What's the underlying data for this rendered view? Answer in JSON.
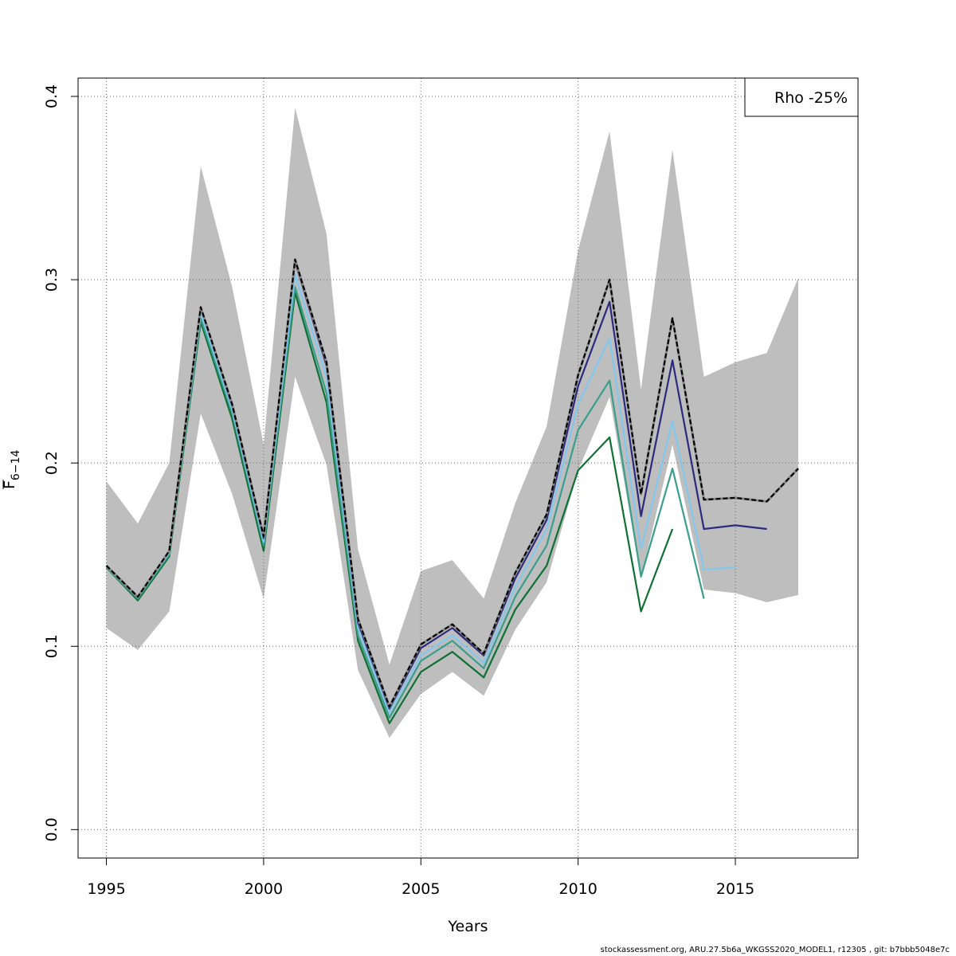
{
  "chart_data": {
    "type": "line",
    "xlabel": "Years",
    "ylabel": {
      "main": "F",
      "sub": "6−14"
    },
    "xlim": [
      1994.1,
      2018.9
    ],
    "ylim": [
      -0.0155,
      0.41
    ],
    "x_ticks": [
      1995,
      2000,
      2005,
      2010,
      2015
    ],
    "y_ticks": [
      0.0,
      0.1,
      0.2,
      0.3,
      0.4
    ],
    "x_tick_labels": [
      "1995",
      "2000",
      "2005",
      "2010",
      "2015"
    ],
    "y_tick_labels": [
      "0.0",
      "0.1",
      "0.2",
      "0.3",
      "0.4"
    ],
    "grid": true,
    "legend": {
      "position": "top-right",
      "entries": [
        "Rho -25%"
      ]
    },
    "confidence_band": {
      "x": [
        1995,
        1996,
        1997,
        1998,
        1999,
        2000,
        2001,
        2002,
        2003,
        2004,
        2005,
        2006,
        2007,
        2008,
        2009,
        2010,
        2011,
        2012,
        2013,
        2014,
        2015,
        2016,
        2017
      ],
      "upper": [
        0.19,
        0.167,
        0.2,
        0.362,
        0.296,
        0.21,
        0.394,
        0.325,
        0.153,
        0.09,
        0.141,
        0.147,
        0.126,
        0.178,
        0.22,
        0.316,
        0.381,
        0.24,
        0.371,
        0.247,
        0.255,
        0.26,
        0.301
      ],
      "lower": [
        0.11,
        0.098,
        0.119,
        0.227,
        0.183,
        0.126,
        0.247,
        0.199,
        0.087,
        0.05,
        0.074,
        0.086,
        0.073,
        0.109,
        0.135,
        0.196,
        0.236,
        0.137,
        0.21,
        0.131,
        0.129,
        0.124,
        0.128
      ]
    },
    "series": [
      {
        "x": [
          1995,
          1996,
          1997,
          1998,
          1999,
          2000,
          2001,
          2002,
          2003,
          2004,
          2005,
          2006,
          2007,
          2008,
          2009,
          2010,
          2011,
          2012,
          2013,
          2014,
          2015,
          2016,
          2017
        ],
        "values": [
          0.144,
          0.127,
          0.152,
          0.285,
          0.232,
          0.16,
          0.311,
          0.255,
          0.115,
          0.067,
          0.101,
          0.112,
          0.096,
          0.14,
          0.172,
          0.248,
          0.3,
          0.183,
          0.279,
          0.18,
          0.181,
          0.179,
          0.197
        ],
        "color": "#000000",
        "dashed": true
      },
      {
        "x": [
          1995,
          1996,
          1997,
          1998,
          1999,
          2000,
          2001,
          2002,
          2003,
          2004,
          2005,
          2006,
          2007,
          2008,
          2009,
          2010,
          2011,
          2012,
          2013,
          2014,
          2015,
          2016
        ],
        "values": [
          0.144,
          0.127,
          0.152,
          0.285,
          0.231,
          0.159,
          0.31,
          0.253,
          0.113,
          0.066,
          0.099,
          0.11,
          0.095,
          0.137,
          0.169,
          0.242,
          0.288,
          0.171,
          0.256,
          0.164,
          0.166,
          0.164
        ],
        "color": "#2b2a7f"
      },
      {
        "x": [
          1995,
          1996,
          1997,
          1998,
          1999,
          2000,
          2001,
          2002,
          2003,
          2004,
          2005,
          2006,
          2007,
          2008,
          2009,
          2010,
          2011,
          2012,
          2013,
          2014,
          2015
        ],
        "values": [
          0.144,
          0.127,
          0.151,
          0.282,
          0.229,
          0.157,
          0.303,
          0.247,
          0.11,
          0.064,
          0.095,
          0.106,
          0.091,
          0.132,
          0.164,
          0.232,
          0.268,
          0.153,
          0.223,
          0.142,
          0.143
        ],
        "color": "#82c8ee"
      },
      {
        "x": [
          1995,
          1996,
          1997,
          1998,
          1999,
          2000,
          2001,
          2002,
          2003,
          2004,
          2005,
          2006,
          2007,
          2008,
          2009,
          2010,
          2011,
          2012,
          2013,
          2014
        ],
        "values": [
          0.143,
          0.126,
          0.15,
          0.279,
          0.227,
          0.155,
          0.296,
          0.238,
          0.106,
          0.061,
          0.092,
          0.103,
          0.088,
          0.127,
          0.155,
          0.218,
          0.245,
          0.138,
          0.197,
          0.126
        ],
        "color": "#3a9e8c"
      },
      {
        "x": [
          1995,
          1996,
          1997,
          1998,
          1999,
          2000,
          2001,
          2002,
          2003,
          2004,
          2005,
          2006,
          2007,
          2008,
          2009,
          2010,
          2011,
          2012,
          2013
        ],
        "values": [
          0.143,
          0.125,
          0.149,
          0.277,
          0.224,
          0.152,
          0.293,
          0.233,
          0.103,
          0.058,
          0.086,
          0.097,
          0.083,
          0.12,
          0.144,
          0.196,
          0.214,
          0.119,
          0.164
        ],
        "color": "#0e7032"
      }
    ]
  },
  "credit": "stockassessment.org, ARU.27.5b6a_WKGSS2020_MODEL1, r12305 , git: b7bbb5048e7c"
}
